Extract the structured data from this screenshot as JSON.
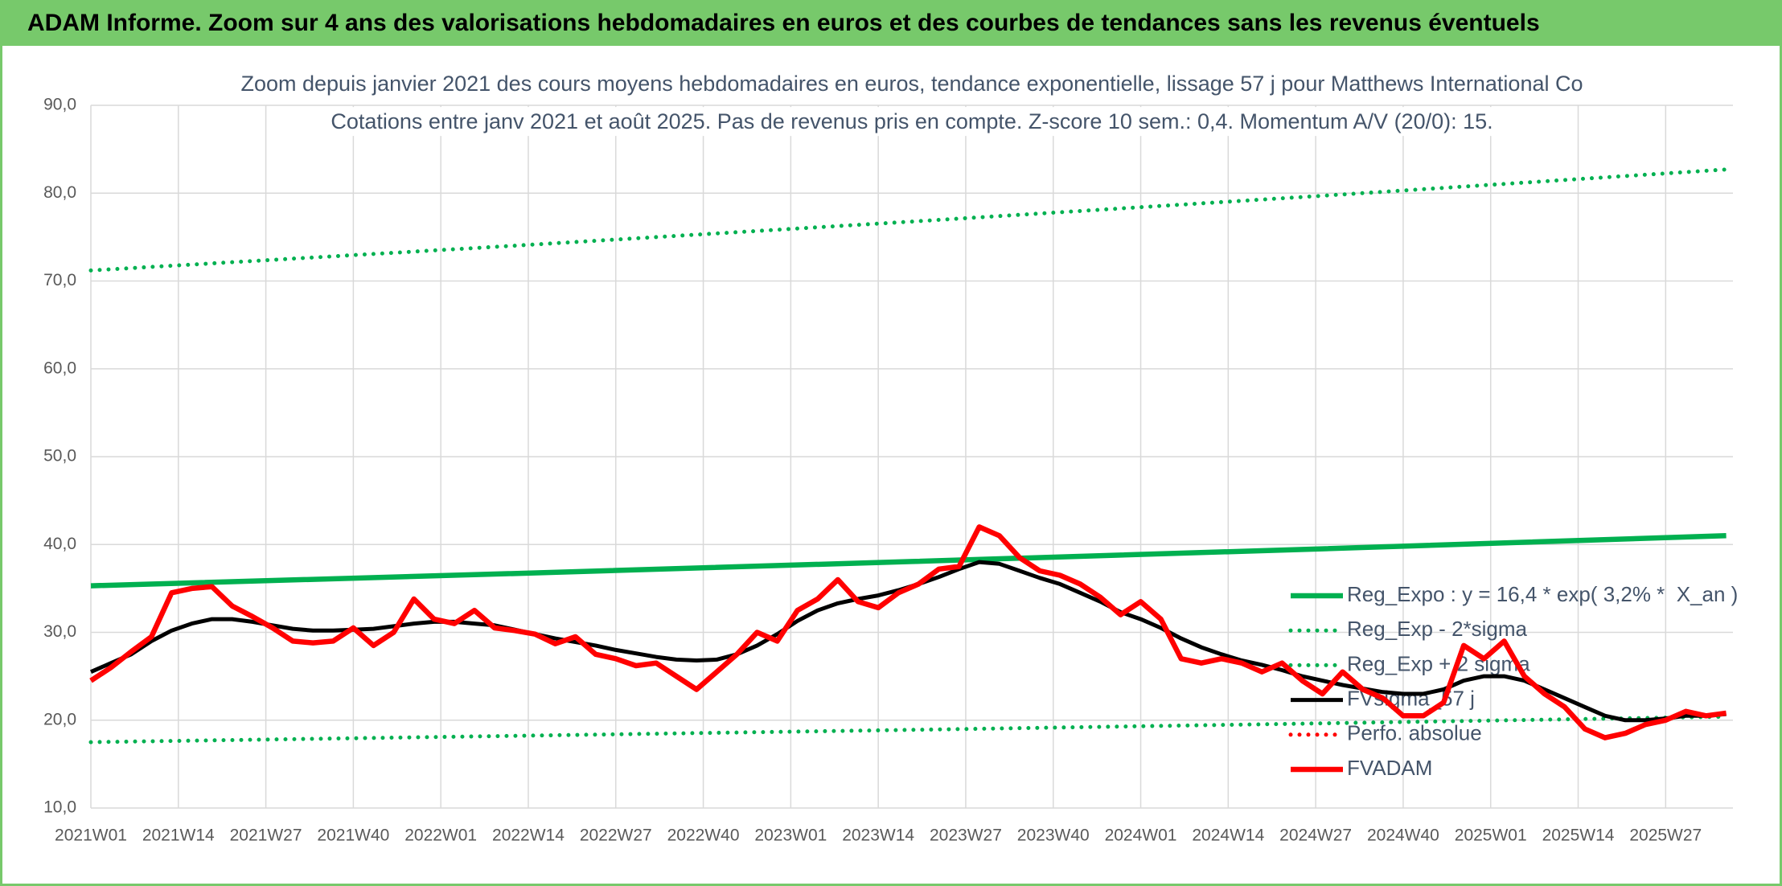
{
  "header": {
    "title": "ADAM Informe. Zoom sur 4 ans des valorisations hebdomadaires en euros et des courbes de tendances sans les revenus éventuels"
  },
  "chart_data": {
    "type": "line",
    "title": "Zoom depuis janvier 2021 des cours moyens hebdomadaires en euros, tendance exponentielle, lissage 57 j pour Matthews International Co",
    "subtitle": "Cotations entre janv 2021 et août 2025. Pas de revenus pris en compte. Z-score 10 sem.: 0,4. Momentum A/V (20/0): 15.",
    "x": [
      0,
      3,
      6,
      9,
      12,
      15,
      18,
      21,
      24,
      27,
      30,
      33,
      36,
      39,
      42,
      45,
      48,
      51,
      54,
      57,
      60,
      63,
      66,
      69,
      72,
      75,
      78,
      81,
      84,
      87,
      90,
      93,
      96,
      99,
      102,
      105,
      108,
      111,
      114,
      117,
      120,
      123,
      126,
      129,
      132,
      135,
      138,
      141,
      144,
      147,
      150,
      153,
      156,
      159,
      162,
      165,
      168,
      171,
      174,
      177,
      180,
      183,
      186,
      189,
      192,
      195,
      198,
      201,
      204,
      207,
      210,
      213,
      216,
      219,
      222,
      225,
      228,
      231,
      234,
      237,
      240,
      243
    ],
    "xlim": [
      0,
      244
    ],
    "xticks": [
      {
        "value": 0,
        "label": "2021W01"
      },
      {
        "value": 13,
        "label": "2021W14"
      },
      {
        "value": 26,
        "label": "2021W27"
      },
      {
        "value": 39,
        "label": "2021W40"
      },
      {
        "value": 52,
        "label": "2022W01"
      },
      {
        "value": 65,
        "label": "2022W14"
      },
      {
        "value": 78,
        "label": "2022W27"
      },
      {
        "value": 91,
        "label": "2022W40"
      },
      {
        "value": 104,
        "label": "2023W01"
      },
      {
        "value": 117,
        "label": "2023W14"
      },
      {
        "value": 130,
        "label": "2023W27"
      },
      {
        "value": 143,
        "label": "2023W40"
      },
      {
        "value": 156,
        "label": "2024W01"
      },
      {
        "value": 169,
        "label": "2024W14"
      },
      {
        "value": 182,
        "label": "2024W27"
      },
      {
        "value": 195,
        "label": "2024W40"
      },
      {
        "value": 208,
        "label": "2025W01"
      },
      {
        "value": 221,
        "label": "2025W14"
      },
      {
        "value": 234,
        "label": "2025W27"
      }
    ],
    "ylim": [
      10,
      90
    ],
    "yticks": [
      {
        "value": 10,
        "label": "10,0"
      },
      {
        "value": 20,
        "label": "20,0"
      },
      {
        "value": 30,
        "label": "30,0"
      },
      {
        "value": 40,
        "label": "40,0"
      },
      {
        "value": 50,
        "label": "50,0"
      },
      {
        "value": 60,
        "label": "60,0"
      },
      {
        "value": 70,
        "label": "70,0"
      },
      {
        "value": 80,
        "label": "80,0"
      },
      {
        "value": 90,
        "label": "90,0"
      }
    ],
    "grid": true,
    "legend": "bottom-right",
    "series": [
      {
        "name": "Reg_Expo : y = 16,4 * exp( 3,2% *  X_an )",
        "color": "#00b050",
        "style": "solid",
        "x": [
          0,
          61,
          122,
          183,
          243
        ],
        "values": [
          35.3,
          36.65,
          38.06,
          39.51,
          41.0
        ]
      },
      {
        "name": "Reg_Exp - 2*sigma",
        "color": "#00b050",
        "style": "dotted",
        "x": [
          0,
          61,
          122,
          183,
          243
        ],
        "values": [
          17.5,
          18.19,
          18.9,
          19.64,
          20.4
        ]
      },
      {
        "name": "Reg_Exp + 2 sigma",
        "color": "#00b050",
        "style": "dotted",
        "x": [
          0,
          61,
          122,
          183,
          243
        ],
        "values": [
          71.2,
          73.93,
          76.76,
          79.7,
          82.7
        ]
      },
      {
        "name": "FVsigma_57 j",
        "color": "#000000",
        "style": "solid",
        "values": [
          25.5,
          26.5,
          27.5,
          29.0,
          30.2,
          31.0,
          31.5,
          31.5,
          31.2,
          30.8,
          30.4,
          30.2,
          30.2,
          30.3,
          30.4,
          30.7,
          31.0,
          31.2,
          31.2,
          31.0,
          30.8,
          30.3,
          29.8,
          29.3,
          28.9,
          28.5,
          28.0,
          27.6,
          27.2,
          26.9,
          26.8,
          26.9,
          27.5,
          28.5,
          29.8,
          31.3,
          32.5,
          33.3,
          33.8,
          34.2,
          34.8,
          35.5,
          36.3,
          37.2,
          38.0,
          37.8,
          37.0,
          36.2,
          35.5,
          34.5,
          33.5,
          32.3,
          31.5,
          30.5,
          29.3,
          28.3,
          27.5,
          26.8,
          26.3,
          25.7,
          25.0,
          24.5,
          24.0,
          23.6,
          23.2,
          23.0,
          23.0,
          23.5,
          24.5,
          25.0,
          25.0,
          24.5,
          23.5,
          22.5,
          21.5,
          20.5,
          20.0,
          20.0,
          20.2,
          20.5,
          20.5,
          20.7
        ]
      },
      {
        "name": "Perfo. absolue",
        "color": "#ff0000",
        "style": "dotted"
      },
      {
        "name": "FVADAM",
        "color": "#ff0000",
        "style": "solid",
        "values": [
          24.5,
          26.0,
          27.8,
          29.5,
          34.5,
          35.0,
          35.2,
          33.0,
          31.8,
          30.5,
          29.0,
          28.8,
          29.0,
          30.5,
          28.5,
          30.0,
          33.8,
          31.5,
          31.0,
          32.5,
          30.5,
          30.2,
          29.8,
          28.7,
          29.5,
          27.5,
          27.0,
          26.2,
          26.5,
          25.0,
          23.5,
          25.5,
          27.5,
          30.0,
          29.0,
          32.5,
          33.8,
          36.0,
          33.5,
          32.8,
          34.5,
          35.5,
          37.2,
          37.5,
          42.0,
          41.0,
          38.5,
          37.0,
          36.5,
          35.5,
          34.0,
          32.0,
          33.5,
          31.5,
          27.0,
          26.5,
          27.0,
          26.5,
          25.5,
          26.5,
          24.5,
          23.0,
          25.5,
          23.5,
          22.5,
          20.5,
          20.5,
          22.0,
          28.5,
          27.0,
          29.0,
          25.0,
          23.0,
          21.5,
          19.0,
          18.0,
          18.5,
          19.5,
          20.0,
          21.0,
          20.5,
          20.8
        ]
      }
    ]
  }
}
